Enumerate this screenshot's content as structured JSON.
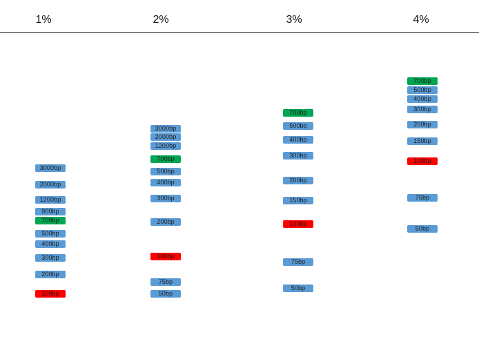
{
  "colors": {
    "ladder": "#5b9bd5",
    "marker_700": "#00a651",
    "marker_100": "#ff0000"
  },
  "lanes": [
    {
      "header": "1%",
      "bands": [
        {
          "label": "3000bp",
          "kind": "ladder"
        },
        {
          "label": "2000bp",
          "kind": "ladder"
        },
        {
          "label": "1200bp",
          "kind": "ladder"
        },
        {
          "label": "900bp",
          "kind": "ladder"
        },
        {
          "label": "700bp",
          "kind": "marker_700"
        },
        {
          "label": "500bp",
          "kind": "ladder"
        },
        {
          "label": "400bp",
          "kind": "ladder"
        },
        {
          "label": "300bp",
          "kind": "ladder"
        },
        {
          "label": "200bp",
          "kind": "ladder"
        },
        {
          "label": "100bp",
          "kind": "marker_100"
        }
      ]
    },
    {
      "header": "2%",
      "bands": [
        {
          "label": "3000bp",
          "kind": "ladder"
        },
        {
          "label": "2000bp",
          "kind": "ladder"
        },
        {
          "label": "1200bp",
          "kind": "ladder"
        },
        {
          "label": "700bp",
          "kind": "marker_700"
        },
        {
          "label": "500bp",
          "kind": "ladder"
        },
        {
          "label": "400bp",
          "kind": "ladder"
        },
        {
          "label": "300bp",
          "kind": "ladder"
        },
        {
          "label": "200bp",
          "kind": "ladder"
        },
        {
          "label": "100bp",
          "kind": "marker_100"
        },
        {
          "label": "75bp",
          "kind": "ladder"
        },
        {
          "label": "50bp",
          "kind": "ladder"
        }
      ]
    },
    {
      "header": "3%",
      "bands": [
        {
          "label": "700bp",
          "kind": "marker_700"
        },
        {
          "label": "500bp",
          "kind": "ladder"
        },
        {
          "label": "400bp",
          "kind": "ladder"
        },
        {
          "label": "300bp",
          "kind": "ladder"
        },
        {
          "label": "200bp",
          "kind": "ladder"
        },
        {
          "label": "150bp",
          "kind": "ladder"
        },
        {
          "label": "100bp",
          "kind": "marker_100"
        },
        {
          "label": "75bp",
          "kind": "ladder"
        },
        {
          "label": "50bp",
          "kind": "ladder"
        }
      ]
    },
    {
      "header": "4%",
      "bands": [
        {
          "label": "700bp",
          "kind": "marker_700"
        },
        {
          "label": "500bp",
          "kind": "ladder"
        },
        {
          "label": "400bp",
          "kind": "ladder"
        },
        {
          "label": "300bp",
          "kind": "ladder"
        },
        {
          "label": "200bp",
          "kind": "ladder"
        },
        {
          "label": "150bp",
          "kind": "ladder"
        },
        {
          "label": "100bp",
          "kind": "marker_100"
        },
        {
          "label": "75bp",
          "kind": "ladder"
        },
        {
          "label": "50bp",
          "kind": "ladder"
        }
      ]
    }
  ]
}
